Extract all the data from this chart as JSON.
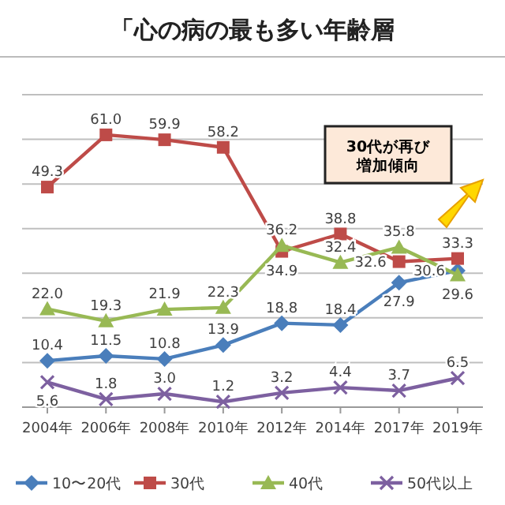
{
  "chart_data": {
    "type": "line",
    "title": "「心の病の最も多い年齢層",
    "categories": [
      "2004年",
      "2006年",
      "2008年",
      "2010年",
      "2012年",
      "2014年",
      "2017年",
      "2019年"
    ],
    "series": [
      {
        "name": "10〜20代",
        "color": "#4a7ebb",
        "marker": "diamond",
        "values": [
          10.4,
          11.5,
          10.8,
          13.9,
          18.8,
          18.4,
          27.9,
          30.6
        ],
        "value_labels": [
          "10.4",
          "11.5",
          "10.8",
          "13.9",
          "18.8",
          "18.4",
          "27.9",
          "30.6"
        ]
      },
      {
        "name": "30代",
        "color": "#be4b48",
        "marker": "square",
        "values": [
          49.3,
          61.0,
          59.9,
          58.2,
          34.9,
          38.8,
          32.6,
          33.3
        ],
        "value_labels": [
          "49.3",
          "61.0",
          "59.9",
          "58.2",
          "34.9",
          "38.8",
          "32.6",
          "33.3"
        ]
      },
      {
        "name": "40代",
        "color": "#98b954",
        "marker": "triangle",
        "values": [
          22.0,
          19.3,
          21.9,
          22.3,
          36.2,
          32.4,
          35.8,
          29.6
        ],
        "value_labels": [
          "22.0",
          "19.3",
          "21.9",
          "22.3",
          "36.2",
          "32.4",
          "35.8",
          "29.6"
        ]
      },
      {
        "name": "50代以上",
        "color": "#7d60a0",
        "marker": "cross",
        "values": [
          5.6,
          1.8,
          3.0,
          1.2,
          3.2,
          4.4,
          3.7,
          6.5
        ],
        "value_labels": [
          "5.6",
          "1.8",
          "3.0",
          "1.2",
          "3.2",
          "4.4",
          "3.7",
          "6.5"
        ]
      }
    ],
    "ylim": [
      0,
      70
    ],
    "yticks": [
      {
        "value": 0,
        "label": null
      },
      {
        "value": 10,
        "label": null
      },
      {
        "value": 20,
        "label": null
      },
      {
        "value": 30,
        "label": null
      },
      {
        "value": 40,
        "label": null
      },
      {
        "value": 50,
        "label": null
      },
      {
        "value": 60,
        "label": null
      },
      {
        "value": 70,
        "label": null
      }
    ],
    "tick_labels": "x",
    "grid": "y",
    "legend": "bottom",
    "annotations": [
      "30代が再び増加傾向"
    ]
  }
}
